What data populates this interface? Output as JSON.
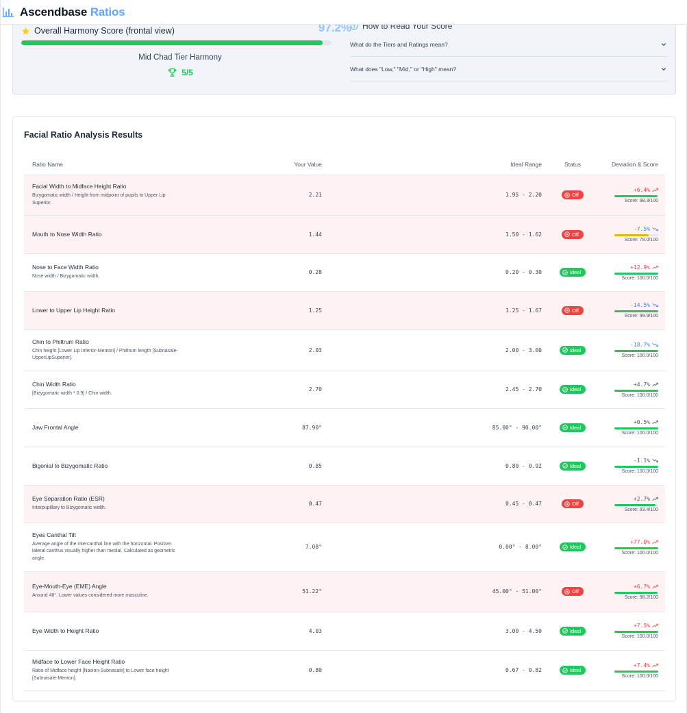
{
  "header": {
    "brand_main": "Ascendbase",
    "brand_accent": "Ratios"
  },
  "summary": {
    "overall_label": "Overall Harmony Score (frontal view)",
    "overall_pct": "97.2%",
    "overall_fraction": 0.972,
    "tier_label": "Mid Chad Tier Harmony",
    "tier_score": "5/5"
  },
  "howto": {
    "title": "How to Read Your Score",
    "items": [
      "What do the Tiers and Ratings mean?",
      "What does \"Low,\" \"Mid,\" or \"High\" mean?"
    ]
  },
  "results": {
    "title": "Facial Ratio Analysis Results",
    "columns": {
      "name": "Ratio Name",
      "value": "Your Value",
      "range": "Ideal Range",
      "status": "Status",
      "deviation": "Deviation & Score"
    },
    "rows": [
      {
        "name": "Facial Width to Midface Height Ratio",
        "desc": "Bizygomatic width / Height from midpoint of pupils to Upper Lip Superior.",
        "value": "2.21",
        "range": "1.95 - 2.20",
        "status": "Off",
        "status_type": "off",
        "deviation": "+6.4%",
        "dev_dir": "up",
        "dev_color": "red",
        "score": "Score: 98.3/100",
        "score_fraction": 0.983,
        "bar_color": "#22c55e",
        "h": 59
      },
      {
        "name": "Mouth to Nose Width Ratio",
        "desc": "",
        "value": "1.44",
        "range": "1.50 - 1.62",
        "status": "Off",
        "status_type": "off",
        "deviation": "-7.5%",
        "dev_dir": "down",
        "dev_color": "blue",
        "score": "Score: 78.0/100",
        "score_fraction": 0.78,
        "bar_color": "#eab308",
        "h": 56
      },
      {
        "name": "Nose to Face Width Ratio",
        "desc": "Nose width / Bizygomatic width.",
        "value": "0.28",
        "range": "0.20 - 0.30",
        "status": "Ideal",
        "status_type": "ideal",
        "deviation": "+12.9%",
        "dev_dir": "up",
        "dev_color": "red",
        "score": "Score: 100.0/100",
        "score_fraction": 1.0,
        "bar_color": "#22c55e",
        "h": 55
      },
      {
        "name": "Lower to Upper Lip Height Ratio",
        "desc": "",
        "value": "1.25",
        "range": "1.25 - 1.67",
        "status": "Off",
        "status_type": "off",
        "deviation": "-14.5%",
        "dev_dir": "down",
        "dev_color": "blue",
        "score": "Score: 99.9/100",
        "score_fraction": 0.999,
        "bar_color": "#22c55e",
        "h": 56
      },
      {
        "name": "Chin to Philtrum Ratio",
        "desc": "Chin height [Lower Lip Inferior-Menton] / Philtrum length [Subnasale-UpperLipSuperior].",
        "value": "2.03",
        "range": "2.00 - 3.00",
        "status": "Ideal",
        "status_type": "ideal",
        "deviation": "-18.7%",
        "dev_dir": "down",
        "dev_color": "blue",
        "score": "Score: 100.0/100",
        "score_fraction": 1.0,
        "bar_color": "#22c55e",
        "h": 60
      },
      {
        "name": "Chin Width Ratio",
        "desc": "[Bizygomatic width * 0.9] / Chin width.",
        "value": "2.70",
        "range": "2.45 - 2.70",
        "status": "Ideal",
        "status_type": "ideal",
        "deviation": "+4.7%",
        "dev_dir": "up",
        "dev_color": "gray",
        "score": "Score: 100.0/100",
        "score_fraction": 1.0,
        "bar_color": "#22c55e",
        "h": 55
      },
      {
        "name": "Jaw Frontal Angle",
        "desc": "",
        "value": "87.90°",
        "range": "85.00° - 90.00°",
        "status": "Ideal",
        "status_type": "ideal",
        "deviation": "+0.5%",
        "dev_dir": "up",
        "dev_color": "gray",
        "score": "Score: 100.0/100",
        "score_fraction": 1.0,
        "bar_color": "#22c55e",
        "h": 56
      },
      {
        "name": "Bigonial to Bizygomatic Ratio",
        "desc": "",
        "value": "0.85",
        "range": "0.80 - 0.92",
        "status": "Ideal",
        "status_type": "ideal",
        "deviation": "-1.1%",
        "dev_dir": "down",
        "dev_color": "gray",
        "score": "Score: 100.0/100",
        "score_fraction": 1.0,
        "bar_color": "#22c55e",
        "h": 56
      },
      {
        "name": "Eye Separation Ratio (ESR)",
        "desc": "Interpupillary to Bizygomatic width.",
        "value": "0.47",
        "range": "0.45 - 0.47",
        "status": "Off",
        "status_type": "off",
        "deviation": "+2.7%",
        "dev_dir": "up",
        "dev_color": "gray",
        "score": "Score: 93.4/100",
        "score_fraction": 0.934,
        "bar_color": "#22c55e",
        "h": 55
      },
      {
        "name": "Eyes Canthal Tilt",
        "desc": "Average angle of the intercanthal line with the horizontal. Positive: lateral canthus visually higher than medial. Calculated as geometric angle.",
        "value": "7.08°",
        "range": "0.00° - 8.00°",
        "status": "Ideal",
        "status_type": "ideal",
        "deviation": "+77.0%",
        "dev_dir": "up",
        "dev_color": "red",
        "score": "Score: 100.0/100",
        "score_fraction": 1.0,
        "bar_color": "#22c55e",
        "h": 71
      },
      {
        "name": "Eye-Mouth-Eye (EME) Angle",
        "desc": "Around 48°. Lower values considered more masculine.",
        "value": "51.22°",
        "range": "45.00° - 51.00°",
        "status": "Off",
        "status_type": "off",
        "deviation": "+6.7%",
        "dev_dir": "up",
        "dev_color": "red",
        "score": "Score: 98.2/100",
        "score_fraction": 0.982,
        "bar_color": "#22c55e",
        "h": 59
      },
      {
        "name": "Eye Width to Height Ratio",
        "desc": "",
        "value": "4.03",
        "range": "3.00 - 4.50",
        "status": "Ideal",
        "status_type": "ideal",
        "deviation": "+7.5%",
        "dev_dir": "up",
        "dev_color": "red",
        "score": "Score: 100.0/100",
        "score_fraction": 1.0,
        "bar_color": "#22c55e",
        "h": 56
      },
      {
        "name": "Midface to Lower Face Height Ratio",
        "desc": "Ratio of Midface height [Nasion-Subnasale] to Lower face height [Subnasale-Menton].",
        "value": "0.80",
        "range": "0.67 - 0.82",
        "status": "Ideal",
        "status_type": "ideal",
        "deviation": "+7.4%",
        "dev_dir": "up",
        "dev_color": "red",
        "score": "Score: 100.0/100",
        "score_fraction": 1.0,
        "bar_color": "#22c55e",
        "h": 59
      }
    ]
  }
}
